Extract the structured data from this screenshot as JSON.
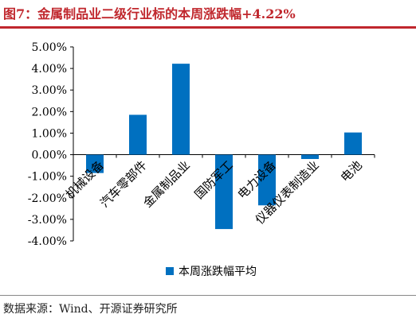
{
  "title": "图7：金属制品业二级行业标的本周涨跌幅+4.22%",
  "source": "数据来源：Wind、开源证券研究所",
  "colors": {
    "title": "#c0272d",
    "bar": "#0070c0",
    "axis": "#000000"
  },
  "chart_data": {
    "type": "bar",
    "categories": [
      "机械设备",
      "汽车零部件",
      "金属制品业",
      "国防军工",
      "电力设备",
      "仪器仪表制造业",
      "电池"
    ],
    "series": [
      {
        "name": "本周涨跌幅平均",
        "values": [
          -0.85,
          1.85,
          4.22,
          -3.45,
          -2.35,
          -0.2,
          1.03
        ]
      }
    ],
    "ylim": [
      -4.0,
      5.0
    ],
    "yticks": [
      -4.0,
      -3.0,
      -2.0,
      -1.0,
      0.0,
      1.0,
      2.0,
      3.0,
      4.0,
      5.0
    ],
    "ytick_labels": [
      "-4.00%",
      "-3.00%",
      "-2.00%",
      "-1.00%",
      "0.00%",
      "1.00%",
      "2.00%",
      "3.00%",
      "4.00%",
      "5.00%"
    ],
    "grid": false,
    "legend": "bottom-center"
  }
}
